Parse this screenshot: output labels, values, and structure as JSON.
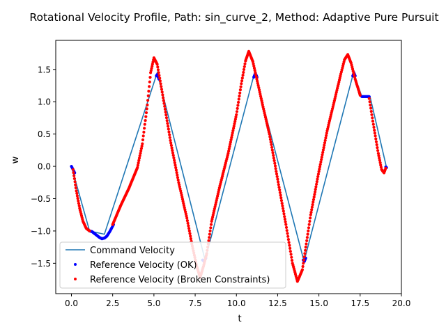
{
  "chart_data": {
    "type": "line",
    "title": "Rotational Velocity Profile, Path: sin_curve_2, Method: Adaptive Pure Pursuit",
    "xlabel": "t",
    "ylabel": "w",
    "xlim": [
      -0.95,
      20.0
    ],
    "ylim": [
      -1.97,
      1.95
    ],
    "xticks": [
      0.0,
      2.5,
      5.0,
      7.5,
      10.0,
      12.5,
      15.0,
      17.5,
      20.0
    ],
    "xtick_labels": [
      "0.0",
      "2.5",
      "5.0",
      "7.5",
      "10.0",
      "12.5",
      "15.0",
      "17.5",
      "20.0"
    ],
    "yticks": [
      -1.5,
      -1.0,
      -0.5,
      0.0,
      0.5,
      1.0,
      1.5
    ],
    "ytick_labels": [
      "−1.5",
      "−1.0",
      "−0.5",
      "0.0",
      "0.5",
      "1.0",
      "1.5"
    ],
    "grid": false,
    "legend_position": "lower-left",
    "colors": {
      "command": "#1f77b4",
      "ok": "#0000ff",
      "broken": "#ff0000"
    },
    "series": [
      {
        "name": "Command Velocity",
        "kind": "line",
        "x": [
          0.0,
          1.1,
          2.0,
          5.2,
          8.1,
          11.1,
          14.1,
          17.1,
          17.6,
          18.1,
          19.1
        ],
        "y": [
          0.0,
          -1.0,
          -1.05,
          1.45,
          -1.45,
          1.45,
          -1.47,
          1.45,
          1.08,
          1.08,
          -0.02
        ]
      },
      {
        "name": "Reference Velocity (OK)",
        "kind": "scatter",
        "segments": [
          {
            "x": [
              0.0,
              0.1,
              0.2
            ],
            "y": [
              0.0,
              -0.05,
              -0.1
            ]
          },
          {
            "x": [
              1.1,
              1.25,
              1.4,
              1.55,
              1.7,
              1.85,
              2.0,
              2.15,
              2.3,
              2.45,
              2.55
            ],
            "y": [
              -1.0,
              -1.01,
              -1.04,
              -1.07,
              -1.1,
              -1.12,
              -1.11,
              -1.08,
              -1.02,
              -0.95,
              -0.9
            ]
          },
          {
            "x": [
              5.15,
              5.2,
              5.3
            ],
            "y": [
              1.4,
              1.42,
              1.35
            ]
          },
          {
            "x": [
              7.95,
              8.05,
              8.15
            ],
            "y": [
              -1.45,
              -1.47,
              -1.42
            ]
          },
          {
            "x": [
              11.05,
              11.15,
              11.25
            ],
            "y": [
              1.38,
              1.44,
              1.38
            ]
          },
          {
            "x": [
              14.05,
              14.12,
              14.2
            ],
            "y": [
              -1.45,
              -1.47,
              -1.42
            ]
          },
          {
            "x": [
              17.05,
              17.12,
              17.2
            ],
            "y": [
              1.4,
              1.45,
              1.4
            ]
          },
          {
            "x": [
              17.6,
              17.75,
              17.9,
              18.05
            ],
            "y": [
              1.08,
              1.08,
              1.08,
              1.08
            ]
          },
          {
            "x": [
              19.05,
              19.1
            ],
            "y": [
              -0.01,
              -0.02
            ]
          }
        ]
      },
      {
        "name": "Reference Velocity (Broken Constraints)",
        "kind": "scatter",
        "segments": [
          {
            "x": [
              0.1,
              0.3,
              0.5,
              0.7,
              0.9,
              1.1
            ],
            "y": [
              -0.05,
              -0.38,
              -0.65,
              -0.85,
              -0.96,
              -1.0
            ]
          },
          {
            "x": [
              2.5,
              3.0,
              3.5,
              4.0,
              4.3,
              4.6,
              4.8,
              5.0,
              5.2,
              5.5,
              6.0,
              6.5,
              7.0,
              7.3,
              7.6,
              7.8,
              8.0,
              8.2,
              8.5,
              9.0,
              9.5,
              10.0,
              10.3,
              10.55,
              10.75,
              11.0,
              11.5,
              12.0,
              12.5,
              13.0,
              13.4,
              13.7,
              14.0,
              14.5,
              15.0,
              15.5,
              16.0,
              16.3,
              16.55,
              16.75,
              16.95,
              17.2,
              17.5
            ],
            "y": [
              -0.9,
              -0.6,
              -0.33,
              -0.02,
              0.35,
              0.95,
              1.45,
              1.68,
              1.58,
              1.15,
              0.4,
              -0.25,
              -0.8,
              -1.2,
              -1.55,
              -1.72,
              -1.55,
              -1.35,
              -0.85,
              -0.3,
              0.2,
              0.8,
              1.28,
              1.63,
              1.78,
              1.62,
              1.05,
              0.5,
              -0.2,
              -0.9,
              -1.5,
              -1.78,
              -1.6,
              -0.75,
              -0.08,
              0.55,
              1.08,
              1.4,
              1.65,
              1.73,
              1.6,
              1.35,
              1.1
            ]
          },
          {
            "x": [
              18.05,
              18.3,
              18.6,
              18.8,
              18.95,
              19.05
            ],
            "y": [
              1.05,
              0.65,
              0.2,
              -0.05,
              -0.1,
              -0.03
            ]
          }
        ]
      }
    ]
  }
}
